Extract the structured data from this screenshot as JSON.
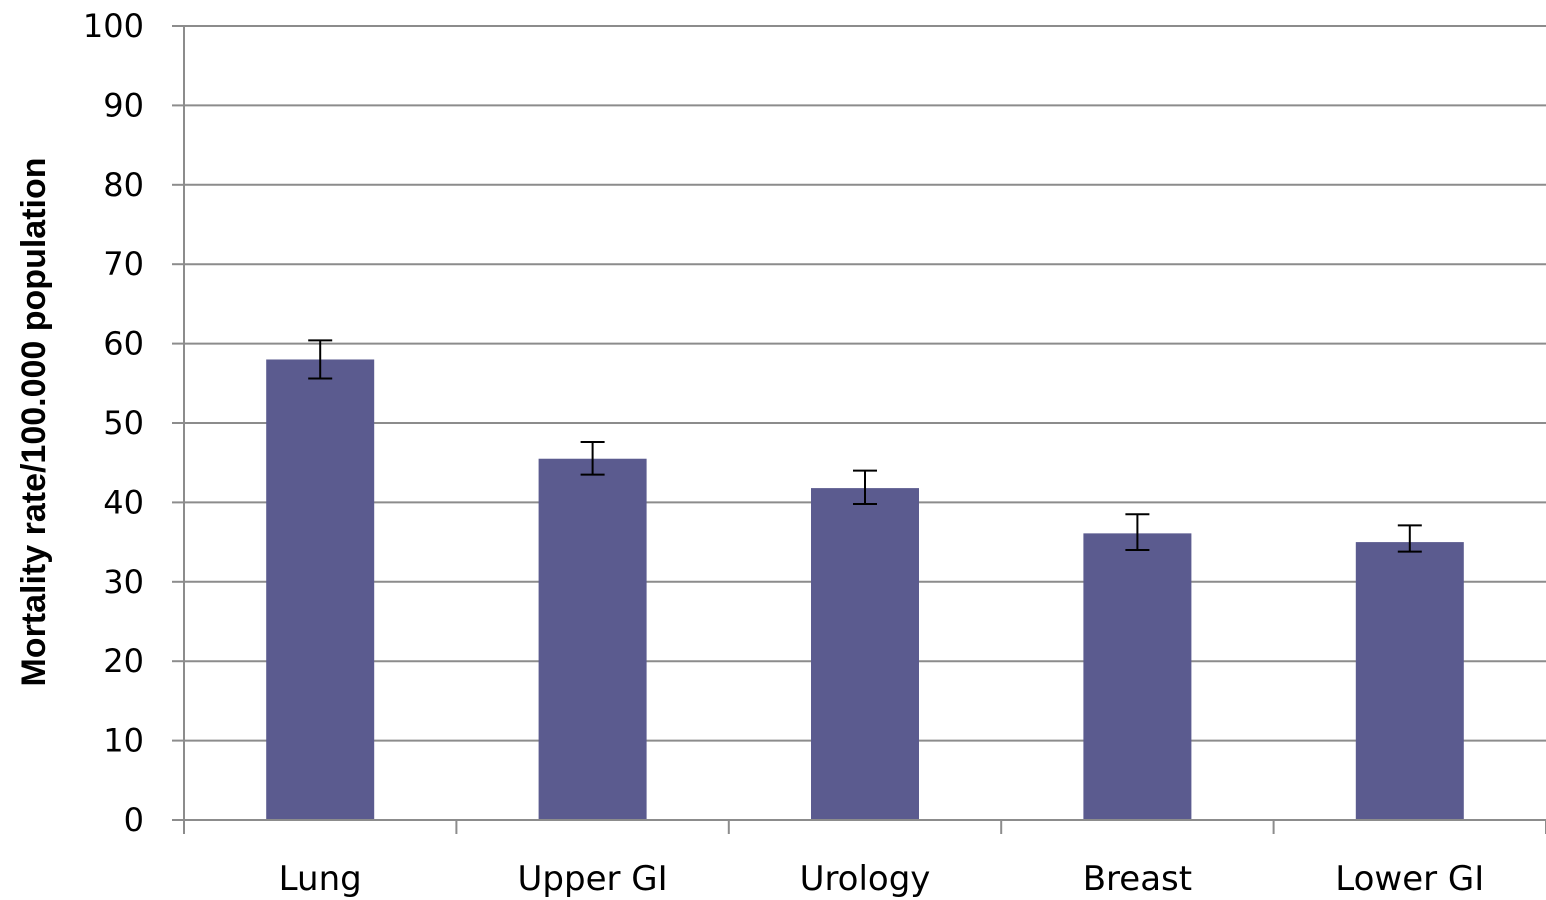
{
  "chart_data": {
    "type": "bar",
    "title": "",
    "xlabel": "",
    "ylabel": "Mortality rate/100.000 population",
    "ylim": [
      0,
      100
    ],
    "yticks": [
      0,
      10,
      20,
      30,
      40,
      50,
      60,
      70,
      80,
      90,
      100
    ],
    "grid": true,
    "categories": [
      "Lung",
      "Upper GI",
      "Urology",
      "Breast",
      "Lower GI"
    ],
    "values": [
      58,
      45.5,
      41.8,
      36.1,
      35
    ],
    "error_low": [
      55.6,
      43.5,
      39.8,
      34,
      33.8
    ],
    "error_high": [
      60.4,
      47.6,
      44,
      38.5,
      37.1
    ],
    "bar_color": "#5b5b8f"
  }
}
